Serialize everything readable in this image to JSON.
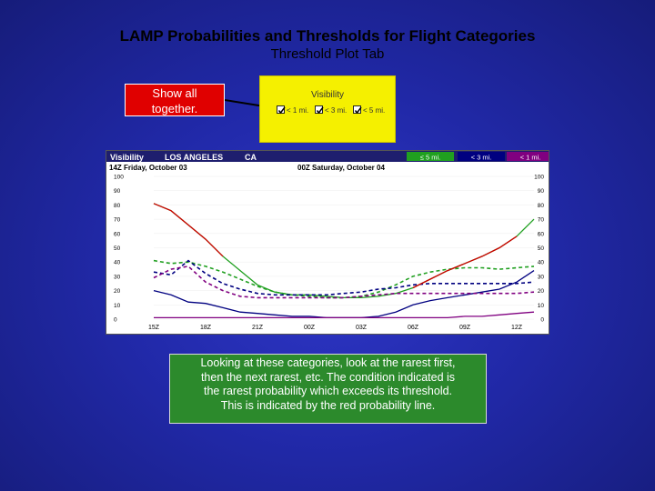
{
  "slide": {
    "title": "LAMP Probabilities and Thresholds for Flight Categories",
    "subtitle": "Threshold Plot Tab",
    "callout": [
      "Show all",
      "together."
    ],
    "note_lines": [
      "Looking at these categories, look at the rarest first,",
      "then the next rarest, etc.  The condition indicated is",
      "the rarest probability which exceeds its threshold.",
      "This is indicated by the red probability line."
    ]
  },
  "visibility_panel": {
    "header": "Visibility",
    "options": [
      {
        "label": "< 1 mi.",
        "checked": true
      },
      {
        "label": "< 3 mi.",
        "checked": true
      },
      {
        "label": "< 5 mi.",
        "checked": true
      }
    ]
  },
  "chart_data": {
    "type": "line",
    "header": {
      "element": "Visibility",
      "location": "LOS ANGELES",
      "state": "CA",
      "start_label": "14Z Friday, October 03",
      "mid_label": "00Z Saturday, October 04",
      "legend": [
        {
          "label": "≤ 5 mi.",
          "color": "#20a020"
        },
        {
          "label": "< 3 mi.",
          "color": "#000080"
        },
        {
          "label": "< 1 mi.",
          "color": "#800080"
        }
      ]
    },
    "colors": {
      "probability": "#d00000",
      "le5": "#20a020",
      "lt3": "#000080",
      "lt1": "#800080"
    },
    "ylim": [
      0,
      100
    ],
    "yticks": [
      0,
      10,
      20,
      30,
      40,
      50,
      60,
      70,
      80,
      90,
      100
    ],
    "xticks": [
      "15Z",
      "18Z",
      "21Z",
      "00Z",
      "03Z",
      "06Z",
      "09Z",
      "12Z"
    ],
    "x": [
      15,
      16,
      17,
      18,
      19,
      20,
      21,
      22,
      23,
      24,
      25,
      26,
      27,
      28,
      29,
      30,
      31,
      32,
      33,
      34,
      35,
      36,
      37
    ],
    "series": [
      {
        "key": "le5",
        "style": "solid",
        "values": [
          81,
          76,
          66,
          56,
          44,
          34,
          24,
          19,
          17,
          17,
          16,
          15,
          15,
          16,
          18,
          22,
          28,
          34,
          39,
          44,
          50,
          58,
          70
        ]
      },
      {
        "key": "le5",
        "style": "dashed",
        "values": [
          41,
          39,
          40,
          37,
          33,
          28,
          23,
          19,
          17,
          16,
          15,
          15,
          16,
          19,
          24,
          30,
          33,
          35,
          36,
          36,
          35,
          36,
          37
        ]
      },
      {
        "key": "lt3",
        "style": "solid",
        "values": [
          20,
          17,
          12,
          11,
          8,
          5,
          4,
          3,
          2,
          2,
          1,
          1,
          1,
          2,
          5,
          10,
          13,
          15,
          17,
          19,
          21,
          26,
          34
        ]
      },
      {
        "key": "lt3",
        "style": "dashed",
        "values": [
          33,
          31,
          41,
          32,
          25,
          21,
          18,
          17,
          17,
          17,
          17,
          18,
          19,
          21,
          22,
          24,
          25,
          25,
          25,
          25,
          25,
          25,
          26
        ]
      },
      {
        "key": "lt1",
        "style": "dashed",
        "values": [
          29,
          35,
          37,
          26,
          20,
          16,
          15,
          15,
          15,
          15,
          15,
          15,
          16,
          17,
          18,
          18,
          18,
          18,
          18,
          18,
          18,
          18,
          19
        ]
      },
      {
        "key": "lt1",
        "style": "solid",
        "values": [
          1,
          1,
          1,
          1,
          1,
          1,
          1,
          1,
          1,
          1,
          1,
          1,
          1,
          1,
          1,
          1,
          1,
          1,
          2,
          2,
          3,
          4,
          5
        ]
      }
    ]
  }
}
